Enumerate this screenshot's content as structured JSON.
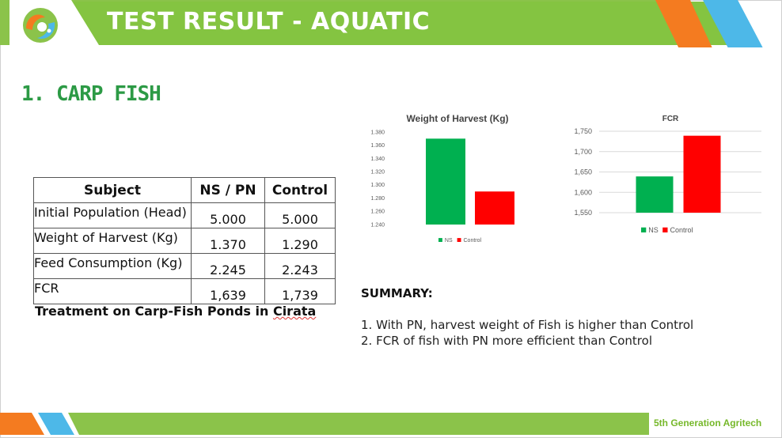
{
  "header": {
    "title": "TEST RESULT - AQUATIC"
  },
  "section": {
    "title": "1. CARP FISH"
  },
  "table": {
    "headers": [
      "Subject",
      "NS / PN",
      "Control"
    ],
    "rows": [
      [
        "Initial Population (Head)",
        "5.000",
        "5.000"
      ],
      [
        "Weight of Harvest (Kg)",
        "1.370",
        "1.290"
      ],
      [
        "Feed Consumption (Kg)",
        "2.245",
        "2.243"
      ],
      [
        "FCR",
        "1,639",
        "1,739"
      ]
    ],
    "caption_prefix": "Treatment on Carp-Fish Ponds in ",
    "caption_underlined": "Cirata"
  },
  "chart_data": [
    {
      "type": "bar",
      "title": "Weight of Harvest (Kg)",
      "categories": [
        "NS",
        "Control"
      ],
      "series": [
        {
          "values": [
            1370,
            1290
          ]
        }
      ],
      "values": [
        1370,
        1290
      ],
      "ylim": [
        1240,
        1380
      ],
      "yticks": [
        1240,
        1260,
        1280,
        1300,
        1320,
        1340,
        1360,
        1380
      ],
      "ytick_labels": [
        "1.240",
        "1.260",
        "1.280",
        "1.300",
        "1.320",
        "1.340",
        "1.360",
        "1.380"
      ],
      "legend": [
        "NS",
        "Control"
      ],
      "legend_position": "bottom",
      "grid": false,
      "colors": [
        "#00b050",
        "#ff0000"
      ]
    },
    {
      "type": "bar",
      "title": "FCR",
      "categories": [
        "NS",
        "Control"
      ],
      "series": [
        {
          "values": [
            1639,
            1739
          ]
        }
      ],
      "values": [
        1639,
        1739
      ],
      "ylim": [
        1550,
        1750
      ],
      "yticks": [
        1550,
        1600,
        1650,
        1700,
        1750
      ],
      "ytick_labels": [
        "1,550",
        "1,600",
        "1,650",
        "1,700",
        "1,750"
      ],
      "legend": [
        "NS",
        "Control"
      ],
      "legend_position": "bottom",
      "grid": true,
      "colors": [
        "#00b050",
        "#ff0000"
      ]
    }
  ],
  "summary": {
    "heading": "SUMMARY:",
    "items": [
      "1.  With PN, harvest weight of Fish is higher than Control",
      "2.  FCR of fish with PN more efficient than Control"
    ]
  },
  "footer": {
    "brand": "5th Generation Agritech"
  },
  "colors": {
    "green": "#8bc34a",
    "dark_green": "#2c9a45",
    "orange": "#f47b20",
    "blue": "#4db8e8"
  }
}
